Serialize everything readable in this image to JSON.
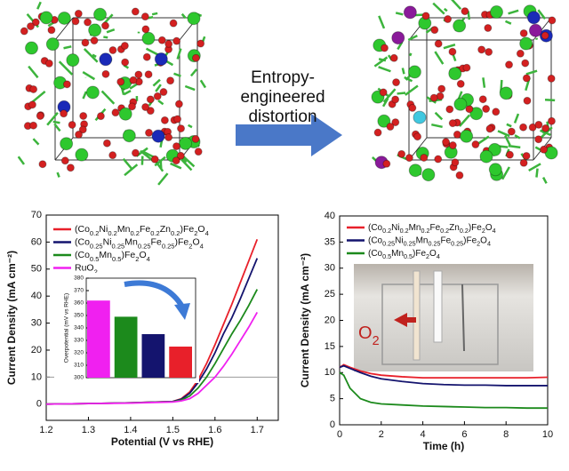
{
  "header": {
    "arrow_text": [
      "Entropy-",
      "engineered",
      "distortion"
    ]
  },
  "photo_label": "O2",
  "chart_data": [
    {
      "type": "line",
      "xlabel": "Potential (V vs RHE)",
      "ylabel": "Current Density (mA cm⁻²)",
      "xlim": [
        1.2,
        1.75
      ],
      "xticks": [
        1.2,
        1.3,
        1.4,
        1.5,
        1.6,
        1.7
      ],
      "ylim": [
        -6,
        70
      ],
      "yticks": [
        0,
        10,
        20,
        30,
        40,
        50,
        60,
        70
      ],
      "reference_line": 10,
      "reference_color": "#999999",
      "x": [
        1.2,
        1.3,
        1.4,
        1.5,
        1.52,
        1.54,
        1.56,
        1.58,
        1.6,
        1.62,
        1.64,
        1.66,
        1.68,
        1.7
      ],
      "series": [
        {
          "name": "(Co0.2Ni0.2Mn0.2Fe0.2Zn0.2)Fe2O4",
          "color": "#e8202a",
          "values": [
            0,
            0.2,
            0.5,
            1,
            2,
            4.5,
            9,
            15,
            22,
            29.5,
            37,
            45,
            53,
            61
          ]
        },
        {
          "name": "(Co0.25Ni0.25Mn0.25Fe0.25)Fe2O4",
          "color": "#14146e",
          "values": [
            0,
            0.2,
            0.5,
            1,
            1.8,
            4,
            8,
            13,
            19,
            26,
            32,
            39,
            46.5,
            54
          ]
        },
        {
          "name": "(Co0.5Mn0.5)Fe2O4",
          "color": "#1c8a1c",
          "values": [
            0,
            0.2,
            0.5,
            0.9,
            1.5,
            3,
            6,
            10,
            15,
            20.5,
            26,
            31,
            36.5,
            42.5
          ]
        },
        {
          "name": "RuO2",
          "color": "#f020f0",
          "values": [
            0,
            0.2,
            0.4,
            0.8,
            1.2,
            2,
            4,
            7,
            10,
            14,
            18.5,
            23.5,
            28.5,
            34
          ]
        }
      ]
    },
    {
      "type": "bar",
      "ylabel": "Overpotential (mV vs RHE)",
      "categories": [
        null,
        null,
        null,
        null
      ],
      "values": [
        362,
        349,
        335,
        325
      ],
      "colors": [
        "#f020f0",
        "#1c8a1c",
        "#14146e",
        "#e8202a"
      ],
      "ylim": [
        300,
        380
      ],
      "yticks": [
        300,
        310,
        320,
        330,
        340,
        350,
        360,
        370,
        380
      ]
    },
    {
      "type": "line",
      "xlabel": "Time (h)",
      "ylabel": "Current Density (mA cm⁻²)",
      "xlim": [
        0,
        10
      ],
      "xticks": [
        0,
        2,
        4,
        6,
        8,
        10
      ],
      "ylim": [
        0,
        40
      ],
      "yticks": [
        0,
        5,
        10,
        15,
        20,
        25,
        30,
        35,
        40
      ],
      "x": [
        0,
        0.2,
        0.5,
        1,
        1.5,
        2,
        3,
        4,
        5,
        6,
        7,
        8,
        9,
        10
      ],
      "series": [
        {
          "name": "(Co0.2Ni0.2Mn0.2Fe0.2Zn0.2)Fe2O4",
          "color": "#e8202a",
          "values": [
            11,
            11.5,
            11,
            10.3,
            9.8,
            9.5,
            9.2,
            9,
            9,
            9,
            9,
            9,
            9,
            9.1
          ]
        },
        {
          "name": "(Co0.25Ni0.25Mn0.25Fe0.25)Fe2O4",
          "color": "#14146e",
          "values": [
            11,
            11.3,
            10.8,
            10,
            9.3,
            8.8,
            8.3,
            7.9,
            7.7,
            7.6,
            7.6,
            7.5,
            7.5,
            7.5
          ]
        },
        {
          "name": "(Co0.5Mn0.5)Fe2O4",
          "color": "#1c8a1c",
          "values": [
            10,
            9.5,
            7,
            5,
            4.3,
            4,
            3.8,
            3.6,
            3.5,
            3.4,
            3.3,
            3.3,
            3.2,
            3.2
          ]
        }
      ]
    }
  ]
}
